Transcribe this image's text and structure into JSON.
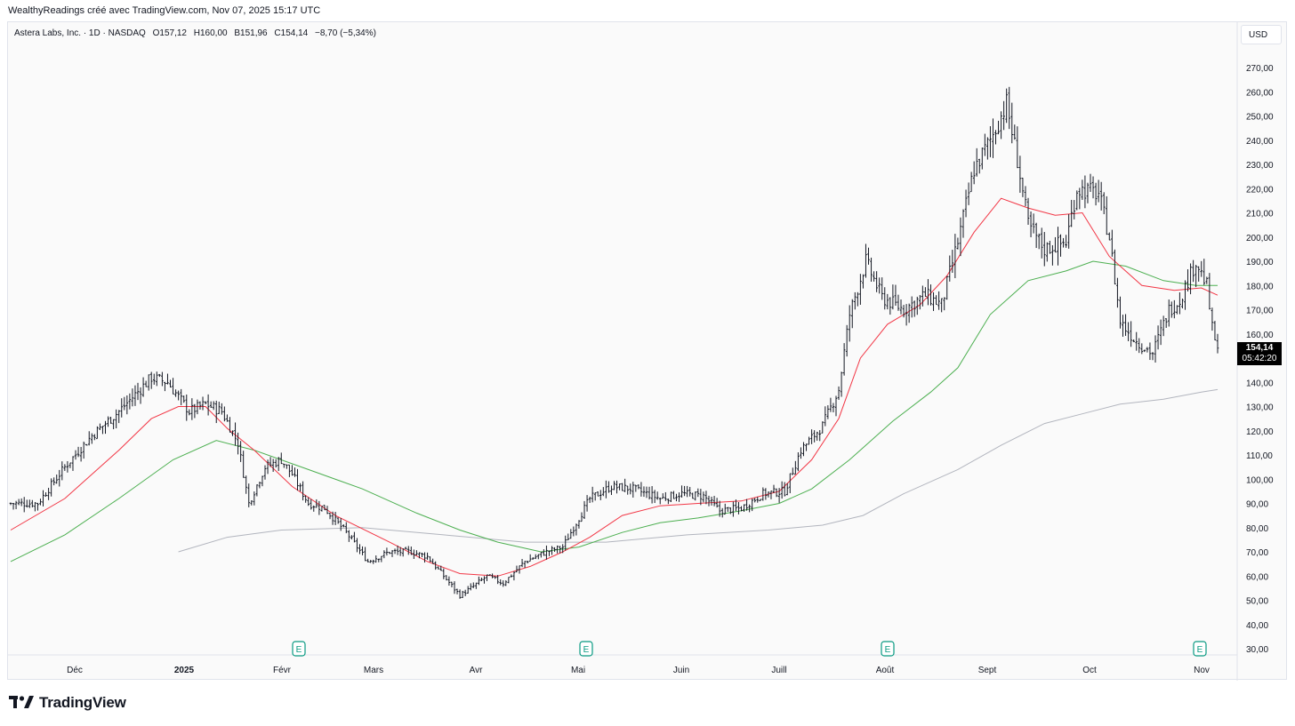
{
  "header": {
    "attribution": "WealthyReadings créé avec TradingView.com, Nov 07, 2025 15:17 UTC"
  },
  "legend": {
    "symbol": "Astera Labs, Inc. · 1D · NASDAQ",
    "open": "O157,12",
    "high": "H160,00",
    "low": "B151,96",
    "close": "C154,14",
    "change": "−8,70 (−5,34%)"
  },
  "currency_button": "USD",
  "last_price": {
    "price": "154,14",
    "countdown": "05:42:20"
  },
  "brand": {
    "name": "TradingView"
  },
  "earnings_marker_label": "E",
  "colors": {
    "ma_short": "#f23645",
    "ma_mid": "#4caf50",
    "ma_long": "#b2b5be",
    "bars": "#131722"
  },
  "chart_data": {
    "type": "ohlc-bar",
    "y_ticks": [
      "270,00",
      "260,00",
      "250,00",
      "240,00",
      "230,00",
      "220,00",
      "210,00",
      "200,00",
      "190,00",
      "180,00",
      "170,00",
      "160,00",
      "150,00",
      "140,00",
      "130,00",
      "120,00",
      "110,00",
      "100,00",
      "90,00",
      "80,00",
      "70,00",
      "60,00",
      "50,00",
      "40,00",
      "30,00"
    ],
    "ylim": [
      25,
      278
    ],
    "x_labels": [
      "Déc",
      "2025",
      "Févr",
      "Mars",
      "Avr",
      "Mai",
      "Juin",
      "Juill",
      "Août",
      "Sept",
      "Oct",
      "Nov"
    ],
    "earnings_months": [
      "Févr",
      "Mai",
      "Août",
      "Nov"
    ],
    "price_anchors": [
      [
        0,
        90
      ],
      [
        10,
        90
      ],
      [
        20,
        105
      ],
      [
        30,
        118
      ],
      [
        40,
        128
      ],
      [
        52,
        142
      ],
      [
        58,
        140
      ],
      [
        66,
        128
      ],
      [
        72,
        131
      ],
      [
        78,
        128
      ],
      [
        84,
        115
      ],
      [
        88,
        90
      ],
      [
        94,
        105
      ],
      [
        100,
        108
      ],
      [
        104,
        102
      ],
      [
        110,
        90
      ],
      [
        116,
        88
      ],
      [
        124,
        78
      ],
      [
        132,
        66
      ],
      [
        140,
        70
      ],
      [
        148,
        70
      ],
      [
        154,
        68
      ],
      [
        160,
        60
      ],
      [
        166,
        52
      ],
      [
        170,
        55
      ],
      [
        176,
        60
      ],
      [
        182,
        57
      ],
      [
        190,
        66
      ],
      [
        198,
        70
      ],
      [
        204,
        72
      ],
      [
        208,
        80
      ],
      [
        214,
        92
      ],
      [
        222,
        97
      ],
      [
        230,
        96
      ],
      [
        240,
        92
      ],
      [
        248,
        94
      ],
      [
        256,
        93
      ],
      [
        262,
        87
      ],
      [
        270,
        88
      ],
      [
        278,
        94
      ],
      [
        286,
        95
      ],
      [
        292,
        112
      ],
      [
        300,
        122
      ],
      [
        306,
        137
      ],
      [
        310,
        168
      ],
      [
        316,
        190
      ],
      [
        322,
        175
      ],
      [
        330,
        170
      ],
      [
        338,
        176
      ],
      [
        344,
        172
      ],
      [
        350,
        198
      ],
      [
        356,
        228
      ],
      [
        362,
        240
      ],
      [
        368,
        255
      ],
      [
        372,
        232
      ],
      [
        376,
        205
      ],
      [
        382,
        195
      ],
      [
        390,
        198
      ],
      [
        394,
        220
      ],
      [
        402,
        218
      ],
      [
        406,
        200
      ],
      [
        410,
        165
      ],
      [
        416,
        157
      ],
      [
        422,
        152
      ],
      [
        428,
        170
      ],
      [
        432,
        174
      ],
      [
        438,
        190
      ],
      [
        442,
        180
      ],
      [
        444,
        162
      ],
      [
        446,
        154
      ]
    ],
    "ma_red": [
      [
        0,
        79
      ],
      [
        20,
        92
      ],
      [
        40,
        112
      ],
      [
        52,
        125
      ],
      [
        62,
        130
      ],
      [
        72,
        130
      ],
      [
        80,
        121
      ],
      [
        90,
        112
      ],
      [
        104,
        97
      ],
      [
        120,
        85
      ],
      [
        140,
        74
      ],
      [
        154,
        66
      ],
      [
        166,
        61
      ],
      [
        180,
        60
      ],
      [
        192,
        64
      ],
      [
        204,
        70
      ],
      [
        214,
        76
      ],
      [
        226,
        85
      ],
      [
        240,
        89
      ],
      [
        254,
        90
      ],
      [
        270,
        91
      ],
      [
        284,
        95
      ],
      [
        296,
        108
      ],
      [
        306,
        125
      ],
      [
        314,
        150
      ],
      [
        324,
        164
      ],
      [
        336,
        172
      ],
      [
        346,
        184
      ],
      [
        356,
        202
      ],
      [
        366,
        216
      ],
      [
        376,
        212
      ],
      [
        386,
        209
      ],
      [
        396,
        210
      ],
      [
        406,
        192
      ],
      [
        418,
        180
      ],
      [
        430,
        178
      ],
      [
        440,
        179
      ],
      [
        446,
        176
      ]
    ],
    "ma_green": [
      [
        0,
        66
      ],
      [
        20,
        77
      ],
      [
        40,
        92
      ],
      [
        60,
        108
      ],
      [
        76,
        116
      ],
      [
        90,
        112
      ],
      [
        110,
        104
      ],
      [
        130,
        96
      ],
      [
        150,
        86
      ],
      [
        166,
        79
      ],
      [
        180,
        74
      ],
      [
        196,
        70
      ],
      [
        210,
        72
      ],
      [
        226,
        78
      ],
      [
        240,
        82
      ],
      [
        254,
        84
      ],
      [
        270,
        87
      ],
      [
        284,
        90
      ],
      [
        296,
        96
      ],
      [
        310,
        108
      ],
      [
        326,
        124
      ],
      [
        340,
        136
      ],
      [
        350,
        146
      ],
      [
        362,
        168
      ],
      [
        376,
        182
      ],
      [
        390,
        186
      ],
      [
        400,
        190
      ],
      [
        412,
        188
      ],
      [
        426,
        182
      ],
      [
        438,
        180
      ],
      [
        446,
        180
      ]
    ],
    "ma_gray": [
      [
        62,
        70
      ],
      [
        80,
        76
      ],
      [
        100,
        79
      ],
      [
        130,
        80
      ],
      [
        160,
        77
      ],
      [
        190,
        74
      ],
      [
        220,
        74
      ],
      [
        250,
        77
      ],
      [
        280,
        79
      ],
      [
        300,
        81
      ],
      [
        315,
        85
      ],
      [
        330,
        94
      ],
      [
        350,
        104
      ],
      [
        366,
        114
      ],
      [
        382,
        123
      ],
      [
        396,
        127
      ],
      [
        410,
        131
      ],
      [
        426,
        133
      ],
      [
        440,
        136
      ],
      [
        446,
        137
      ]
    ]
  }
}
